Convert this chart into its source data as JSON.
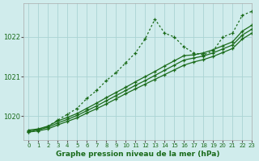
{
  "title": "Graphe pression niveau de la mer (hPa)",
  "bg_color": "#d0ecec",
  "grid_color": "#aad4d4",
  "line_color": "#1a6b1a",
  "xlim": [
    -0.5,
    23
  ],
  "ylim": [
    1019.4,
    1022.85
  ],
  "xticks": [
    0,
    1,
    2,
    3,
    4,
    5,
    6,
    7,
    8,
    9,
    10,
    11,
    12,
    13,
    14,
    15,
    16,
    17,
    18,
    19,
    20,
    21,
    22,
    23
  ],
  "yticks": [
    1020,
    1021,
    1022
  ],
  "series_dotted": [
    1019.6,
    1019.65,
    1019.75,
    1019.9,
    1020.05,
    1020.2,
    1020.45,
    1020.65,
    1020.9,
    1021.1,
    1021.35,
    1021.6,
    1021.95,
    1022.45,
    1022.1,
    1022.0,
    1021.75,
    1021.6,
    1021.55,
    1021.65,
    1022.0,
    1022.1,
    1022.55,
    1022.65
  ],
  "series_linear": [
    [
      1019.65,
      1019.68,
      1019.75,
      1019.88,
      1019.97,
      1020.07,
      1020.2,
      1020.33,
      1020.47,
      1020.6,
      1020.73,
      1020.87,
      1021.0,
      1021.13,
      1021.27,
      1021.4,
      1021.53,
      1021.55,
      1021.6,
      1021.68,
      1021.78,
      1021.88,
      1022.15,
      1022.3
    ],
    [
      1019.63,
      1019.66,
      1019.72,
      1019.83,
      1019.92,
      1020.02,
      1020.14,
      1020.26,
      1020.39,
      1020.52,
      1020.65,
      1020.78,
      1020.9,
      1021.03,
      1021.16,
      1021.29,
      1021.42,
      1021.47,
      1021.52,
      1021.6,
      1021.7,
      1021.8,
      1022.05,
      1022.2
    ],
    [
      1019.6,
      1019.63,
      1019.68,
      1019.78,
      1019.87,
      1019.96,
      1020.08,
      1020.19,
      1020.31,
      1020.44,
      1020.57,
      1020.69,
      1020.81,
      1020.93,
      1021.05,
      1021.17,
      1021.29,
      1021.37,
      1021.43,
      1021.51,
      1021.61,
      1021.71,
      1021.95,
      1022.1
    ]
  ]
}
